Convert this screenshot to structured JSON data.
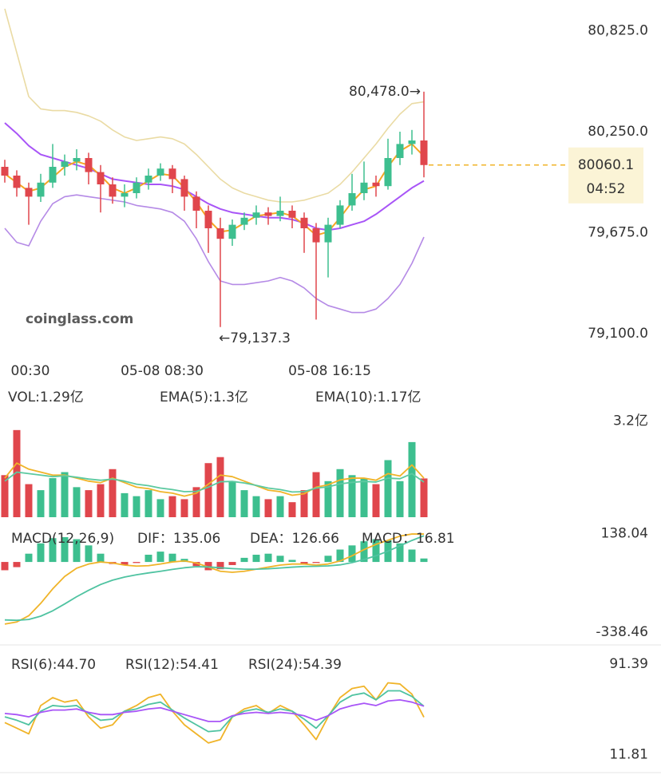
{
  "chart_data": [
    {
      "type": "candlestick",
      "categories": [
        null,
        null,
        "00:30",
        null,
        null,
        null,
        null,
        null,
        null,
        null,
        null,
        null,
        null,
        "05-08 08:30",
        null,
        null,
        null,
        null,
        null,
        null,
        null,
        null,
        null,
        null,
        null,
        null,
        null,
        "05-08 16:15",
        null,
        null,
        null,
        null,
        null,
        null,
        null,
        null
      ],
      "open": [
        80050,
        80000,
        79930,
        79880,
        79960,
        80050,
        80080,
        80100,
        80020,
        79950,
        79880,
        79900,
        79960,
        80000,
        80040,
        79980,
        79880,
        79800,
        79700,
        79640,
        79720,
        79760,
        79790,
        79770,
        79800,
        79760,
        79700,
        79620,
        79720,
        79830,
        79900,
        79960,
        79940,
        80100,
        80180,
        80200
      ],
      "high": [
        80090,
        80030,
        79960,
        80010,
        80180,
        80120,
        80150,
        80130,
        80060,
        79990,
        79950,
        79990,
        80040,
        80070,
        80060,
        80000,
        79910,
        79830,
        79760,
        79750,
        79790,
        79830,
        79820,
        79880,
        79830,
        79790,
        79730,
        79760,
        79860,
        80010,
        80080,
        80000,
        80210,
        80250,
        80260,
        80478.0
      ],
      "low": [
        79960,
        79880,
        79720,
        79850,
        79930,
        80000,
        80030,
        79950,
        79790,
        79840,
        79820,
        79870,
        79920,
        79970,
        79900,
        79800,
        79700,
        79560,
        79137.3,
        79600,
        79690,
        79720,
        79720,
        79740,
        79700,
        79560,
        79180,
        79420,
        79700,
        79800,
        79860,
        79880,
        79920,
        80060,
        80120,
        79990
      ],
      "close": [
        80000,
        79930,
        79880,
        79960,
        80050,
        80080,
        80100,
        80020,
        79950,
        79880,
        79900,
        79960,
        80000,
        80040,
        79980,
        79880,
        79800,
        79700,
        79640,
        79720,
        79760,
        79790,
        79770,
        79800,
        79760,
        79700,
        79620,
        79720,
        79830,
        79900,
        79960,
        79940,
        80100,
        80180,
        80200,
        80060.1
      ],
      "up_color": "#3dbf8f",
      "down_color": "#e0464c",
      "lines": [
        {
          "color": "#eadba4",
          "values": [
            80950,
            80700,
            80450,
            80380,
            80370,
            80370,
            80360,
            80340,
            80310,
            80260,
            80220,
            80200,
            80210,
            80220,
            80210,
            80180,
            80120,
            80050,
            79980,
            79930,
            79900,
            79880,
            79860,
            79850,
            79850,
            79860,
            79880,
            79900,
            79950,
            80020,
            80100,
            80180,
            80270,
            80350,
            80410,
            80420
          ]
        },
        {
          "color": "#b58ae6",
          "values": [
            79700,
            79620,
            79600,
            79740,
            79840,
            79880,
            79890,
            79880,
            79870,
            79860,
            79850,
            79830,
            79820,
            79810,
            79790,
            79740,
            79640,
            79510,
            79400,
            79380,
            79380,
            79390,
            79400,
            79420,
            79400,
            79360,
            79300,
            79260,
            79240,
            79220,
            79220,
            79240,
            79300,
            79380,
            79500,
            79650
          ]
        },
        {
          "color": "#a855f7",
          "values": [
            80300,
            80240,
            80170,
            80120,
            80100,
            80080,
            80060,
            80040,
            80010,
            79980,
            79970,
            79960,
            79950,
            79950,
            79940,
            79920,
            79880,
            79840,
            79810,
            79790,
            79780,
            79770,
            79760,
            79760,
            79750,
            79730,
            79700,
            79690,
            79700,
            79720,
            79740,
            79780,
            79830,
            79880,
            79930,
            79970
          ]
        },
        {
          "color": "#f5a623",
          "values": [
            80010,
            79960,
            79910,
            79930,
            79990,
            80050,
            80080,
            80060,
            80000,
            79930,
            79900,
            79930,
            79970,
            80010,
            80000,
            79930,
            79850,
            79750,
            79680,
            79690,
            79730,
            79770,
            79780,
            79790,
            79770,
            79720,
            79660,
            79680,
            79760,
            79850,
            79920,
            79940,
            80050,
            80140,
            80180,
            80110
          ]
        }
      ],
      "ylim": [
        79000,
        81000
      ],
      "yticks": [
        {
          "value": 80825.0,
          "label": "80,825.0"
        },
        {
          "value": 80250.0,
          "label": "80,250.0"
        },
        {
          "value": 79675.0,
          "label": "79,675.0"
        },
        {
          "value": 79100.0,
          "label": "79,100.0"
        }
      ],
      "max_annotation": {
        "value": 80478.0,
        "label": "80,478.0→"
      },
      "min_annotation": {
        "value": 79137.3,
        "label": "←79,137.3"
      },
      "last_price": 80060.1,
      "countdown": "04:52",
      "watermark": "coinglass.com"
    },
    {
      "type": "bar",
      "series": [
        {
          "name": "VOL:1.29亿",
          "color": "#333333",
          "values": [
            1.4,
            2.9,
            1.1,
            0.9,
            1.3,
            1.5,
            1.0,
            0.9,
            1.1,
            1.6,
            0.8,
            0.7,
            0.9,
            0.6,
            0.7,
            0.6,
            1.0,
            1.8,
            2.0,
            1.2,
            0.9,
            0.7,
            0.6,
            0.7,
            0.5,
            0.9,
            1.5,
            1.2,
            1.6,
            1.4,
            1.3,
            1.1,
            1.9,
            1.2,
            2.5,
            1.29
          ]
        },
        {
          "name": "EMA(5):1.3亿",
          "color": "#f0b429",
          "values": [
            1.3,
            1.8,
            1.6,
            1.5,
            1.4,
            1.4,
            1.3,
            1.2,
            1.15,
            1.3,
            1.15,
            1.0,
            0.95,
            0.85,
            0.8,
            0.7,
            0.8,
            1.1,
            1.4,
            1.35,
            1.2,
            1.05,
            0.9,
            0.85,
            0.73,
            0.78,
            1.0,
            1.08,
            1.24,
            1.3,
            1.3,
            1.23,
            1.45,
            1.37,
            1.74,
            1.3
          ]
        },
        {
          "name": "EMA(10):1.17亿",
          "color": "#5cc9a0",
          "values": [
            1.2,
            1.5,
            1.45,
            1.4,
            1.35,
            1.38,
            1.33,
            1.27,
            1.23,
            1.27,
            1.2,
            1.1,
            1.05,
            0.97,
            0.92,
            0.85,
            0.86,
            1.0,
            1.18,
            1.19,
            1.14,
            1.06,
            0.97,
            0.92,
            0.84,
            0.85,
            0.97,
            1.01,
            1.11,
            1.16,
            1.19,
            1.17,
            1.3,
            1.28,
            1.45,
            1.17
          ]
        }
      ],
      "ylim": [
        0,
        3.4
      ],
      "yticks": [
        {
          "value": 3.2,
          "label": "3.2亿"
        }
      ]
    },
    {
      "type": "macd",
      "title": "MACD(12,26,9)",
      "series": [
        {
          "name": "DIF：135.06",
          "color": "#f0b429",
          "values": [
            -300,
            -290,
            -260,
            -200,
            -130,
            -70,
            -30,
            -10,
            0,
            -5,
            -15,
            -20,
            -18,
            -10,
            0,
            5,
            -5,
            -25,
            -45,
            -50,
            -45,
            -35,
            -25,
            -15,
            -10,
            -10,
            -15,
            -10,
            5,
            30,
            60,
            85,
            105,
            125,
            135,
            135.06
          ]
        },
        {
          "name": "DEA：126.66",
          "color": "#4fc3a1",
          "values": [
            -280,
            -282,
            -278,
            -262,
            -236,
            -203,
            -168,
            -137,
            -109,
            -88,
            -73,
            -62,
            -53,
            -45,
            -36,
            -28,
            -23,
            -24,
            -28,
            -32,
            -35,
            -35,
            -33,
            -29,
            -25,
            -22,
            -21,
            -19,
            -14,
            -3,
            12,
            30,
            52,
            78,
            104,
            126.66
          ]
        },
        {
          "name": "MACD：16.81",
          "color": "#b45cf0",
          "values": [
            -40,
            -25,
            40,
            90,
            115,
            120,
            110,
            80,
            40,
            -10,
            -15,
            -5,
            35,
            50,
            40,
            15,
            -20,
            -40,
            -35,
            -15,
            20,
            35,
            40,
            30,
            10,
            -10,
            -5,
            30,
            60,
            80,
            100,
            110,
            105,
            90,
            60,
            16.81
          ]
        }
      ],
      "up_color": "#3dbf8f",
      "down_color": "#e0464c",
      "ylim": [
        -370,
        170
      ],
      "yticks": [
        138.04,
        -338.46
      ]
    },
    {
      "type": "line",
      "series": [
        {
          "name": "RSI(6):44.70",
          "color": "#f0b429",
          "values": [
            40,
            35,
            30,
            55,
            62,
            58,
            60,
            45,
            35,
            38,
            50,
            55,
            62,
            65,
            50,
            38,
            30,
            22,
            25,
            45,
            52,
            55,
            48,
            55,
            50,
            38,
            25,
            45,
            62,
            70,
            72,
            60,
            75,
            74,
            65,
            44.7
          ]
        },
        {
          "name": "RSI(12):54.41",
          "color": "#4fc3a1",
          "values": [
            45,
            42,
            38,
            50,
            55,
            54,
            55,
            48,
            42,
            43,
            50,
            52,
            56,
            58,
            51,
            44,
            38,
            32,
            33,
            45,
            50,
            52,
            49,
            52,
            50,
            43,
            35,
            46,
            58,
            64,
            66,
            60,
            68,
            68,
            63,
            54.41
          ]
        },
        {
          "name": "RSI(24):54.39",
          "color": "#a855f7",
          "values": [
            48,
            47,
            45,
            49,
            51,
            51,
            52,
            49,
            47,
            47,
            49,
            50,
            52,
            53,
            50,
            47,
            44,
            41,
            41,
            46,
            48,
            49,
            48,
            49,
            48,
            46,
            42,
            46,
            52,
            55,
            57,
            55,
            59,
            60,
            58,
            54.39
          ]
        }
      ],
      "ylim": [
        5,
        100
      ],
      "yticks": [
        91.39,
        11.81
      ]
    }
  ]
}
